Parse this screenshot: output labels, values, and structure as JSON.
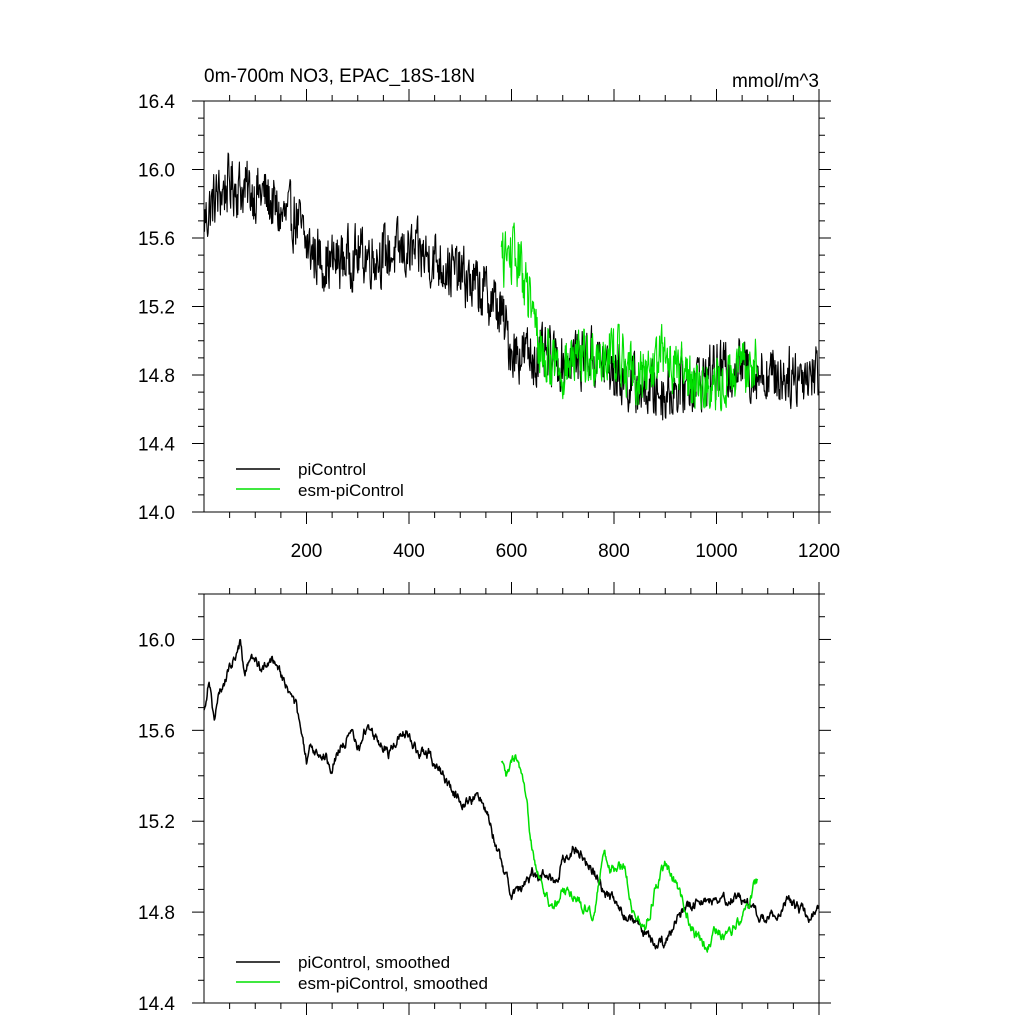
{
  "chart_data": [
    {
      "type": "line",
      "title": "0m-700m NO3, EPAC_18S-18N",
      "units": "mmol/m^3",
      "xlabel": "",
      "ylabel": "",
      "xlim": [
        0,
        1200
      ],
      "ylim": [
        14.0,
        16.4
      ],
      "x_ticks": [
        200,
        400,
        600,
        800,
        1000,
        1200
      ],
      "x_tick_labels": [
        "200",
        "400",
        "600",
        "800",
        "1000",
        "1200"
      ],
      "y_ticks": [
        14.0,
        14.4,
        14.8,
        15.2,
        15.6,
        16.0,
        16.4
      ],
      "y_tick_labels": [
        "14.0",
        "14.4",
        "14.8",
        "15.2",
        "15.6",
        "16.0",
        "16.4"
      ],
      "legend_position": "bottom-left",
      "series": [
        {
          "name": "piControl",
          "color": "#000000",
          "x": [
            0,
            20,
            50,
            80,
            120,
            150,
            180,
            200,
            240,
            300,
            340,
            400,
            450,
            500,
            560,
            580,
            600,
            650,
            700,
            750,
            800,
            850,
            900,
            950,
            1000,
            1050,
            1100,
            1150,
            1200
          ],
          "y": [
            15.7,
            15.82,
            15.92,
            15.88,
            15.85,
            15.72,
            15.72,
            15.55,
            15.45,
            15.5,
            15.5,
            15.52,
            15.48,
            15.38,
            15.25,
            15.15,
            14.95,
            14.9,
            14.88,
            14.92,
            14.82,
            14.72,
            14.7,
            14.76,
            14.82,
            14.85,
            14.8,
            14.8,
            14.82
          ],
          "noise": 0.14
        },
        {
          "name": "esm-piControl",
          "color": "#00e000",
          "x": [
            580,
            600,
            620,
            640,
            660,
            700,
            750,
            800,
            850,
            900,
            950,
            1000,
            1050,
            1080
          ],
          "y": [
            15.48,
            15.5,
            15.42,
            15.15,
            14.92,
            14.85,
            14.9,
            14.95,
            14.78,
            14.92,
            14.78,
            14.72,
            14.82,
            14.92
          ],
          "noise": 0.14
        }
      ]
    },
    {
      "type": "line",
      "title": "",
      "xlabel": "",
      "ylabel": "",
      "xlim": [
        0,
        1200
      ],
      "ylim": [
        14.4,
        16.2
      ],
      "x_ticks": [
        200,
        400,
        600,
        800,
        1000,
        1200
      ],
      "x_tick_labels": [],
      "y_ticks": [
        14.4,
        14.8,
        15.2,
        15.6,
        16.0
      ],
      "y_tick_labels": [
        "14.4",
        "14.8",
        "15.2",
        "15.6",
        "16.0"
      ],
      "legend_position": "bottom-left",
      "series": [
        {
          "name": "piControl, smoothed",
          "color": "#000000",
          "x": [
            0,
            10,
            20,
            30,
            40,
            60,
            70,
            80,
            90,
            100,
            120,
            140,
            160,
            180,
            200,
            210,
            230,
            250,
            270,
            290,
            300,
            320,
            340,
            360,
            380,
            400,
            420,
            440,
            460,
            480,
            500,
            540,
            560,
            580,
            600,
            620,
            640,
            660,
            680,
            700,
            720,
            740,
            760,
            780,
            800,
            820,
            840,
            860,
            880,
            900,
            920,
            940,
            960,
            1000,
            1040,
            1060,
            1080,
            1100,
            1120,
            1140,
            1160,
            1180,
            1200
          ],
          "y": [
            15.68,
            15.85,
            15.65,
            15.75,
            15.82,
            15.93,
            15.98,
            15.85,
            15.92,
            15.9,
            15.87,
            15.92,
            15.8,
            15.7,
            15.45,
            15.52,
            15.5,
            15.45,
            15.55,
            15.57,
            15.52,
            15.62,
            15.55,
            15.5,
            15.58,
            15.6,
            15.48,
            15.5,
            15.42,
            15.35,
            15.3,
            15.3,
            15.2,
            15.0,
            14.9,
            14.9,
            14.96,
            14.97,
            14.93,
            15.02,
            15.08,
            15.05,
            14.98,
            14.9,
            14.85,
            14.8,
            14.74,
            14.7,
            14.65,
            14.66,
            14.76,
            14.8,
            14.85,
            14.85,
            14.88,
            14.84,
            14.78,
            14.76,
            14.8,
            14.86,
            14.82,
            14.76,
            14.84
          ],
          "noise": 0.035
        },
        {
          "name": "esm-piControl, smoothed",
          "color": "#00e000",
          "x": [
            580,
            590,
            600,
            610,
            620,
            640,
            650,
            660,
            680,
            700,
            720,
            740,
            760,
            780,
            800,
            820,
            840,
            860,
            880,
            900,
            920,
            940,
            960,
            980,
            1000,
            1020,
            1040,
            1060,
            1080
          ],
          "y": [
            15.45,
            15.38,
            15.45,
            15.48,
            15.38,
            15.1,
            15.0,
            14.92,
            14.8,
            14.9,
            14.88,
            14.82,
            14.8,
            15.05,
            14.98,
            15.02,
            14.78,
            14.72,
            14.9,
            15.0,
            14.92,
            14.8,
            14.7,
            14.62,
            14.72,
            14.7,
            14.75,
            14.85,
            14.93
          ],
          "noise": 0.035
        }
      ]
    }
  ]
}
